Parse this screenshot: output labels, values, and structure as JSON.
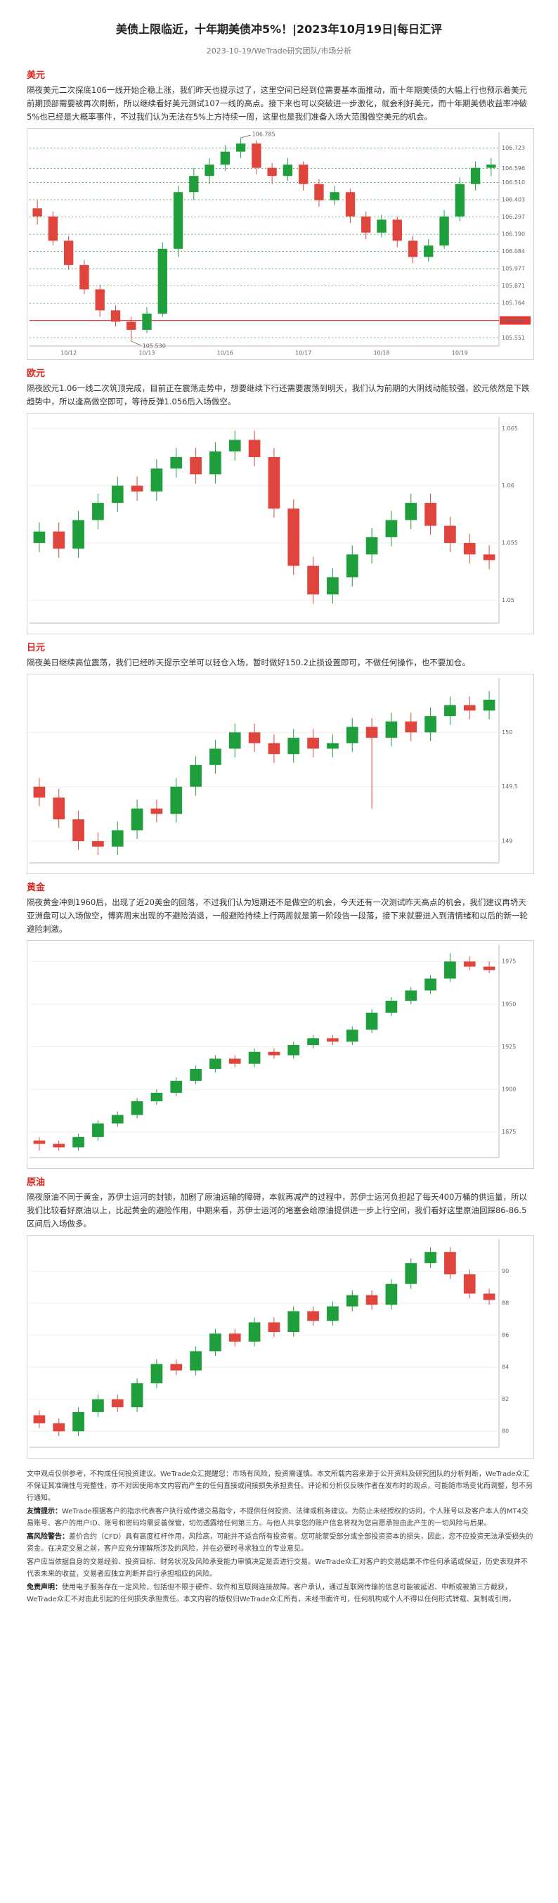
{
  "header": {
    "title": "美债上限临近，十年期美债冲5%！|2023年10月19日|每日汇评",
    "subtitle": "2023-10-19/WeTrade研究团队/市场分析"
  },
  "sections": [
    {
      "heading": "美元",
      "text": "隔夜美元二次探底106一线开始企稳上涨，我们昨天也提示过了，这里空间已经到位需要基本面推动，而十年期美债的大幅上行也预示着美元前期顶部需要被再次刷新，所以继续看好美元测试107一线的高点。接下来也可以突破进一步激化，就会利好美元，而十年期美债收益率冲破5%也已经是大概率事件，不过我们认为无法在5%上方持续一周，这里也是我们准备入场大范围做空美元的机会。",
      "chart": {
        "type": "candlestick",
        "ylim": [
          105.5,
          106.82
        ],
        "up_color": "#1f9e3c",
        "down_color": "#e0453d",
        "xlabels": [
          "10/12",
          "10/13",
          "10/16",
          "10/17",
          "10/18",
          "10/19"
        ],
        "level_color": "#2e9e3e",
        "levels": [
          {
            "value": 106.723,
            "label": "106.723"
          },
          {
            "value": 106.596,
            "label": "106.596"
          },
          {
            "value": 106.51,
            "label": "106.510"
          },
          {
            "value": 106.403,
            "label": "106.403"
          },
          {
            "value": 106.297,
            "label": "106.297"
          },
          {
            "value": 106.19,
            "label": "106.190"
          },
          {
            "value": 106.084,
            "label": "106.084"
          },
          {
            "value": 105.977,
            "label": "105.977"
          },
          {
            "value": 105.871,
            "label": "105.871"
          },
          {
            "value": 105.764,
            "label": "105.764"
          },
          {
            "value": 105.551,
            "label": "105.551"
          }
        ],
        "alert_level": {
          "value": 105.658,
          "label": "105.658",
          "color": "#e53935"
        },
        "high_note": 106.785,
        "low_note": {
          "value": 105.53,
          "label": "105.530"
        },
        "candles": [
          [
            106.35,
            106.4,
            106.25,
            106.3
          ],
          [
            106.3,
            106.33,
            106.12,
            106.15
          ],
          [
            106.15,
            106.18,
            105.97,
            106
          ],
          [
            106,
            106.03,
            105.82,
            105.85
          ],
          [
            105.85,
            105.88,
            105.68,
            105.72
          ],
          [
            105.72,
            105.75,
            105.62,
            105.65
          ],
          [
            105.65,
            105.68,
            105.53,
            105.6
          ],
          [
            105.6,
            105.74,
            105.58,
            105.7
          ],
          [
            105.7,
            106.14,
            105.68,
            106.1
          ],
          [
            106.1,
            106.49,
            106.05,
            106.45
          ],
          [
            106.45,
            106.6,
            106.4,
            106.55
          ],
          [
            106.55,
            106.66,
            106.5,
            106.62
          ],
          [
            106.62,
            106.74,
            106.58,
            106.7
          ],
          [
            106.7,
            106.785,
            106.66,
            106.75
          ],
          [
            106.75,
            106.77,
            106.56,
            106.6
          ],
          [
            106.6,
            106.63,
            106.5,
            106.55
          ],
          [
            106.55,
            106.66,
            106.52,
            106.62
          ],
          [
            106.62,
            106.64,
            106.46,
            106.5
          ],
          [
            106.5,
            106.53,
            106.36,
            106.4
          ],
          [
            106.4,
            106.49,
            106.37,
            106.45
          ],
          [
            106.45,
            106.47,
            106.26,
            106.3
          ],
          [
            106.3,
            106.33,
            106.16,
            106.2
          ],
          [
            106.2,
            106.31,
            106.17,
            106.28
          ],
          [
            106.28,
            106.3,
            106.11,
            106.15
          ],
          [
            106.15,
            106.18,
            106.01,
            106.05
          ],
          [
            106.05,
            106.16,
            106.02,
            106.12
          ],
          [
            106.12,
            106.34,
            106.1,
            106.3
          ],
          [
            106.3,
            106.54,
            106.27,
            106.5
          ],
          [
            106.5,
            106.64,
            106.46,
            106.6
          ],
          [
            106.6,
            106.66,
            106.55,
            106.62
          ]
        ]
      }
    },
    {
      "heading": "欧元",
      "text": "隔夜欧元1.06一线二次筑顶完成，目前正在震荡走势中，想要继续下行还需要震荡到明天，我们认为前期的大阴线动能较强，欧元依然是下跌趋势中，所以逢高做空即可，等待反弹1.056后入场做空。",
      "chart": {
        "type": "candlestick",
        "ylim": [
          1.048,
          1.066
        ],
        "yticks": [
          1.05,
          1.055,
          1.06,
          1.065
        ],
        "up_color": "#1f9e3c",
        "down_color": "#e0453d",
        "candles": [
          [
            1.055,
            1.0568,
            1.0542,
            1.056
          ],
          [
            1.056,
            1.0568,
            1.0537,
            1.0545
          ],
          [
            1.0545,
            1.0578,
            1.0537,
            1.057
          ],
          [
            1.057,
            1.0593,
            1.0562,
            1.0585
          ],
          [
            1.0585,
            1.0608,
            1.0577,
            1.06
          ],
          [
            1.06,
            1.0608,
            1.0587,
            1.0595
          ],
          [
            1.0595,
            1.0623,
            1.0587,
            1.0615
          ],
          [
            1.0615,
            1.0633,
            1.0607,
            1.0625
          ],
          [
            1.0625,
            1.0633,
            1.0602,
            1.061
          ],
          [
            1.061,
            1.0638,
            1.0602,
            1.063
          ],
          [
            1.063,
            1.0648,
            1.0622,
            1.064
          ],
          [
            1.064,
            1.0648,
            1.0617,
            1.0625
          ],
          [
            1.0625,
            1.0633,
            1.0572,
            1.058
          ],
          [
            1.058,
            1.0588,
            1.0522,
            1.053
          ],
          [
            1.053,
            1.0538,
            1.0497,
            1.0505
          ],
          [
            1.0505,
            1.0528,
            1.0497,
            1.052
          ],
          [
            1.052,
            1.0548,
            1.0512,
            1.054
          ],
          [
            1.054,
            1.0563,
            1.0532,
            1.0555
          ],
          [
            1.0555,
            1.0578,
            1.0547,
            1.057
          ],
          [
            1.057,
            1.0593,
            1.0562,
            1.0585
          ],
          [
            1.0585,
            1.0593,
            1.0557,
            1.0565
          ],
          [
            1.0565,
            1.0573,
            1.0542,
            1.055
          ],
          [
            1.055,
            1.0558,
            1.0532,
            1.054
          ],
          [
            1.054,
            1.0548,
            1.0527,
            1.0535
          ]
        ]
      }
    },
    {
      "heading": "日元",
      "text": "隔夜美日继续高位震荡，我们已经昨天提示空单可以轻仓入场，暂时做好150.2止损设置即可，不做任何操作，也不要加仓。",
      "chart": {
        "type": "candlestick",
        "ylim": [
          148.8,
          150.5
        ],
        "yticks": [
          149,
          149.5,
          150
        ],
        "up_color": "#1f9e3c",
        "down_color": "#e0453d",
        "candles": [
          [
            149.5,
            149.58,
            149.32,
            149.4
          ],
          [
            149.4,
            149.48,
            149.12,
            149.2
          ],
          [
            149.2,
            149.28,
            148.92,
            149
          ],
          [
            149,
            149.08,
            148.87,
            148.95
          ],
          [
            148.95,
            149.18,
            148.87,
            149.1
          ],
          [
            149.1,
            149.38,
            149.02,
            149.3
          ],
          [
            149.3,
            149.38,
            149.17,
            149.25
          ],
          [
            149.25,
            149.58,
            149.17,
            149.5
          ],
          [
            149.5,
            149.78,
            149.42,
            149.7
          ],
          [
            149.7,
            149.93,
            149.62,
            149.85
          ],
          [
            149.85,
            150.08,
            149.77,
            150
          ],
          [
            150,
            150.08,
            149.82,
            149.9
          ],
          [
            149.9,
            149.98,
            149.72,
            149.8
          ],
          [
            149.8,
            150.03,
            149.72,
            149.95
          ],
          [
            149.95,
            150.03,
            149.77,
            149.85
          ],
          [
            149.85,
            149.98,
            149.77,
            149.9
          ],
          [
            149.9,
            150.13,
            149.82,
            150.05
          ],
          [
            150.05,
            150.13,
            149.3,
            149.95
          ],
          [
            149.95,
            150.18,
            149.87,
            150.1
          ],
          [
            150.1,
            150.18,
            149.92,
            150
          ],
          [
            150,
            150.23,
            149.92,
            150.15
          ],
          [
            150.15,
            150.33,
            150.07,
            150.25
          ],
          [
            150.25,
            150.33,
            150.12,
            150.2
          ],
          [
            150.2,
            150.38,
            150.12,
            150.3
          ]
        ]
      }
    },
    {
      "heading": "黄金",
      "text": "隔夜黄金冲到1960后，出现了近20美金的回落，不过我们认为短期还不是做空的机会，今天还有一次测试昨天高点的机会，我们建议再坍天亚洲盘可以入场做空，博弈周末出现的不避险消退，一般避险持续上行两周就是第一阶段告一段落，接下来就要进入到清情绪和以后的新一轮避险刺激。",
      "chart": {
        "type": "candlestick",
        "ylim": [
          1860,
          1985
        ],
        "yticks": [
          1875,
          1900,
          1925,
          1950,
          1975
        ],
        "up_color": "#1f9e3c",
        "down_color": "#e0453d",
        "candles": [
          [
            1870,
            1872,
            1864,
            1868
          ],
          [
            1868,
            1870,
            1864,
            1866
          ],
          [
            1866,
            1874,
            1864,
            1872
          ],
          [
            1872,
            1882,
            1870,
            1880
          ],
          [
            1880,
            1887,
            1878,
            1885
          ],
          [
            1885,
            1895,
            1883,
            1893
          ],
          [
            1893,
            1900,
            1891,
            1898
          ],
          [
            1898,
            1907,
            1896,
            1905
          ],
          [
            1905,
            1914,
            1903,
            1912
          ],
          [
            1912,
            1920,
            1910,
            1918
          ],
          [
            1918,
            1920,
            1913,
            1915
          ],
          [
            1915,
            1924,
            1913,
            1922
          ],
          [
            1922,
            1924,
            1918,
            1920
          ],
          [
            1920,
            1928,
            1918,
            1926
          ],
          [
            1926,
            1932,
            1924,
            1930
          ],
          [
            1930,
            1932,
            1926,
            1928
          ],
          [
            1928,
            1937,
            1926,
            1935
          ],
          [
            1935,
            1947,
            1933,
            1945
          ],
          [
            1945,
            1954,
            1943,
            1952
          ],
          [
            1952,
            1960,
            1950,
            1958
          ],
          [
            1958,
            1967,
            1956,
            1965
          ],
          [
            1965,
            1980,
            1963,
            1975
          ],
          [
            1975,
            1978,
            1970,
            1972
          ],
          [
            1972,
            1975,
            1968,
            1970
          ]
        ]
      }
    },
    {
      "heading": "原油",
      "text": "隔夜原油不同于黄金，苏伊士运河的封锁，加剧了原油运输的障碍，本就再减产的过程中，苏伊士运河负担起了每天400万桶的供运量，所以我们比较看好原油以上，比起黄金的避险作用，中期来看，苏伊士运河的堵塞会给原油提供进一步上行空间，我们看好这里原油回踩86-86.5区间后入场做多。",
      "chart": {
        "type": "candlestick",
        "ylim": [
          79,
          92
        ],
        "yticks": [
          80,
          82,
          84,
          86,
          88,
          90
        ],
        "up_color": "#1f9e3c",
        "down_color": "#e0453d",
        "candles": [
          [
            81,
            81.3,
            80.2,
            80.5
          ],
          [
            80.5,
            80.8,
            79.7,
            80
          ],
          [
            80,
            81.5,
            79.7,
            81.2
          ],
          [
            81.2,
            82.3,
            80.9,
            82
          ],
          [
            82,
            82.3,
            81.2,
            81.5
          ],
          [
            81.5,
            83.3,
            81.2,
            83
          ],
          [
            83,
            84.5,
            82.7,
            84.2
          ],
          [
            84.2,
            84.5,
            83.5,
            83.8
          ],
          [
            83.8,
            85.3,
            83.5,
            85
          ],
          [
            85,
            86.4,
            84.7,
            86.1
          ],
          [
            86.1,
            86.4,
            85.3,
            85.6
          ],
          [
            85.6,
            87.1,
            85.3,
            86.8
          ],
          [
            86.8,
            87.1,
            85.9,
            86.2
          ],
          [
            86.2,
            87.8,
            85.9,
            87.5
          ],
          [
            87.5,
            87.8,
            86.6,
            86.9
          ],
          [
            86.9,
            88.1,
            86.6,
            87.8
          ],
          [
            87.8,
            88.8,
            87.5,
            88.5
          ],
          [
            88.5,
            88.8,
            87.6,
            87.9
          ],
          [
            87.9,
            89.5,
            87.6,
            89.2
          ],
          [
            89.2,
            90.8,
            88.9,
            90.5
          ],
          [
            90.5,
            91.5,
            90.2,
            91.2
          ],
          [
            91.2,
            91.5,
            89.5,
            89.8
          ],
          [
            89.8,
            90.1,
            88.3,
            88.6
          ],
          [
            88.6,
            88.9,
            87.9,
            88.2
          ]
        ]
      }
    }
  ],
  "disclaimer": [
    {
      "text": "文中观点仅供参考，不构成任何投资建议。WeTrade众汇提醒您：市场有风险，投资需谨慎。本文所载内容来源于公开资料及研究团队的分析判断，WeTrade众汇不保证其准确性与完整性，亦不对因使用本文内容而产生的任何直接或间接损失承担责任。评论和分析仅反映作者在发布时的观点，可能随市场变化而调整，恕不另行通知。"
    },
    {
      "lead": "友情提示：",
      "text": "WeTrade根据客户的指示代表客户执行或传递交易指令，不提供任何投资、法律或税务建议。为防止未经授权的访问，个人账号以及客户本人的MT4交易账号、客户的用户ID、账号和密码均需妥善保管，切勿透露给任何第三方。与他人共享您的账户信息将视为您自愿承担由此产生的一切风险与后果。"
    },
    {
      "lead": "高风险警告：",
      "text": "差价合约（CFD）具有高度杠杆作用，风险高，可能并不适合所有投资者。您可能蒙受部分或全部投资资本的损失，因此，您不应投资无法承受损失的资金。在决定交易之前，客户应充分理解所涉及的风险，并在必要时寻求独立的专业意见。"
    },
    {
      "text": "客户应当依据自身的交易经验、投资目标、财务状况及风险承受能力审慎决定是否进行交易。WeTrade众汇对客户的交易结果不作任何承诺或保证，历史表现并不代表未来的收益，交易者应独立判断并自行承担相应的风险。"
    },
    {
      "lead": "免责声明：",
      "text": "使用电子服务存在一定风险，包括但不限于硬件、软件和互联网连接故障。客户承认，通过互联网传输的信息可能被延迟、中断或被第三方截获，WeTrade众汇不对由此引起的任何损失承担责任。本文内容的版权归WeTrade众汇所有，未经书面许可，任何机构或个人不得以任何形式转载、复制或引用。"
    }
  ]
}
